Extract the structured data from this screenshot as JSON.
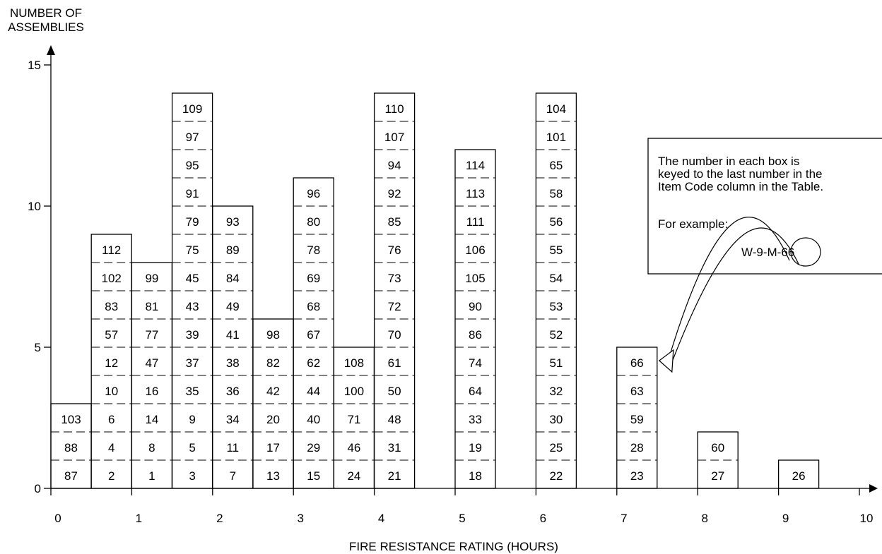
{
  "chart_data": {
    "type": "bar",
    "ylabel": [
      "NUMBER OF",
      "ASSEMBLIES"
    ],
    "xlabel": "FIRE RESISTANCE RATING (HOURS)",
    "xlim": [
      0,
      10
    ],
    "ylim": [
      0,
      15
    ],
    "x_ticks": [
      "0",
      "1",
      "2",
      "3",
      "4",
      "5",
      "6",
      "7",
      "8",
      "9",
      "10"
    ],
    "y_ticks": [
      "0",
      "5",
      "10",
      "15"
    ],
    "bars": [
      {
        "x": 0,
        "count": 3,
        "items": [
          "87",
          "88",
          "103"
        ]
      },
      {
        "x": 0.5,
        "count": 9,
        "items": [
          "2",
          "4",
          "6",
          "10",
          "12",
          "57",
          "83",
          "102",
          "112"
        ]
      },
      {
        "x": 1,
        "count": 8,
        "items": [
          "1",
          "8",
          "14",
          "16",
          "47",
          "77",
          "81",
          "99"
        ]
      },
      {
        "x": 1.5,
        "count": 14,
        "items": [
          "3",
          "5",
          "9",
          "35",
          "37",
          "39",
          "43",
          "45",
          "75",
          "79",
          "91",
          "95",
          "97",
          "109"
        ]
      },
      {
        "x": 2,
        "count": 10,
        "items": [
          "7",
          "11",
          "34",
          "36",
          "38",
          "41",
          "49",
          "84",
          "89",
          "93"
        ]
      },
      {
        "x": 2.5,
        "count": 6,
        "items": [
          "13",
          "17",
          "20",
          "42",
          "82",
          "98"
        ]
      },
      {
        "x": 3,
        "count": 11,
        "items": [
          "15",
          "29",
          "40",
          "44",
          "62",
          "67",
          "68",
          "69",
          "78",
          "80",
          "96"
        ]
      },
      {
        "x": 3.5,
        "count": 5,
        "items": [
          "24",
          "46",
          "71",
          "100",
          "108"
        ]
      },
      {
        "x": 4,
        "count": 14,
        "items": [
          "21",
          "31",
          "48",
          "50",
          "61",
          "70",
          "72",
          "73",
          "76",
          "85",
          "92",
          "94",
          "107",
          "110"
        ]
      },
      {
        "x": 5,
        "count": 12,
        "items": [
          "18",
          "19",
          "33",
          "64",
          "74",
          "86",
          "90",
          "105",
          "106",
          "111",
          "113",
          "114"
        ]
      },
      {
        "x": 6,
        "count": 14,
        "items": [
          "22",
          "25",
          "30",
          "32",
          "51",
          "52",
          "53",
          "54",
          "55",
          "56",
          "58",
          "65",
          "101",
          "104"
        ]
      },
      {
        "x": 7,
        "count": 5,
        "items": [
          "23",
          "28",
          "59",
          "63",
          "66"
        ]
      },
      {
        "x": 8,
        "count": 2,
        "items": [
          "27",
          "60"
        ]
      },
      {
        "x": 9,
        "count": 1,
        "items": [
          "26"
        ]
      }
    ],
    "annotation": {
      "lines": [
        "The number in each box is",
        "keyed to the last number in the",
        "Item Code column in the Table."
      ],
      "example_label": "For example:",
      "example_code": "W-9-M-66",
      "points_to": "66"
    },
    "grid": false
  }
}
